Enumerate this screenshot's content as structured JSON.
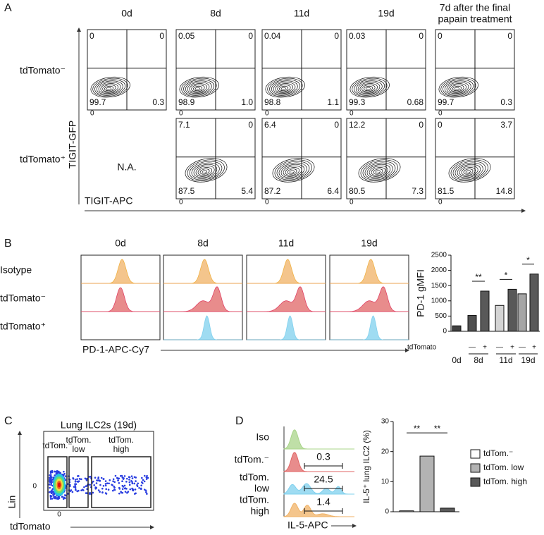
{
  "panel_a": {
    "label": "A",
    "columns": [
      [
        "0d"
      ],
      [
        "8d"
      ],
      [
        "11d"
      ],
      [
        "19d"
      ],
      [
        "7d after the final",
        "papain treatment"
      ]
    ],
    "rows": [
      "tdTomato⁻",
      "tdTomato⁺"
    ],
    "not_available": "N.A.",
    "y_axis_label": "TIGIT-GFP",
    "x_axis_label": "TIGIT-APC",
    "axis_zero": "0",
    "quadrants": [
      [
        [
          "0",
          "0",
          "99.7",
          "0.3"
        ],
        [
          "0.05",
          "0",
          "98.9",
          "1.0"
        ],
        [
          "0.04",
          "0",
          "98.8",
          "1.1"
        ],
        [
          "0.03",
          "0",
          "99.3",
          "0.68"
        ],
        [
          "0",
          "0",
          "99.7",
          "0.3"
        ]
      ],
      [
        null,
        [
          "7.1",
          "0",
          "87.5",
          "5.4"
        ],
        [
          "6.4",
          "0",
          "87.2",
          "6.4"
        ],
        [
          "12.2",
          "0",
          "80.5",
          "7.3"
        ],
        [
          "0",
          "3.7",
          "81.5",
          "14.8"
        ]
      ]
    ]
  },
  "panel_b": {
    "label": "B",
    "columns": [
      "0d",
      "8d",
      "11d",
      "19d"
    ],
    "rows": [
      "Isotype",
      "tdTomato⁻",
      "tdTomato⁺"
    ],
    "x_axis_label": "PD-1-APC-Cy7",
    "chart": {
      "type": "bar",
      "ylabel": "PD-1 gMFI",
      "ylim": [
        0,
        2500
      ],
      "yticks": [
        0,
        500,
        1000,
        1500,
        2000,
        2500
      ],
      "values": [
        180,
        520,
        1320,
        850,
        1380,
        1230,
        1880
      ],
      "colors": [
        "#404040",
        "#505050",
        "#595959",
        "#d4d4d4",
        "#595959",
        "#a6a6a6",
        "#595959"
      ],
      "xlabel": "tdTomato",
      "signs": [
        "—",
        "+",
        "—",
        "+",
        "—",
        "+"
      ],
      "groups": [
        "0d",
        "8d",
        "11d",
        "19d"
      ],
      "significance": [
        "**",
        "*",
        "*"
      ]
    }
  },
  "panel_c": {
    "label": "C",
    "title": "Lung ILC2s (19d)",
    "gates": [
      [
        "tdTom.⁻"
      ],
      [
        "tdTom.",
        "low"
      ],
      [
        "tdTom.",
        "high"
      ]
    ],
    "y_axis_label": "Lin",
    "x_axis_label": "tdTomato",
    "axis_zero": "0"
  },
  "panel_d": {
    "label": "D",
    "rows": [
      [
        "Iso"
      ],
      [
        "tdTom.⁻"
      ],
      [
        "tdTom.",
        "low"
      ],
      [
        "tdTom.",
        "high"
      ]
    ],
    "gate_values": [
      null,
      "0.3",
      "24.5",
      "1.4"
    ],
    "x_axis_label": "IL-5-APC",
    "chart": {
      "type": "bar",
      "ylabel": "IL-5⁺ lung ILC2 (%)",
      "ylim": [
        0,
        30
      ],
      "yticks": [
        0,
        10,
        20,
        30
      ],
      "values": [
        0.3,
        18.5,
        1.2
      ],
      "colors": [
        "#ffffff",
        "#b3b3b3",
        "#595959"
      ],
      "legend": [
        "tdTom.⁻",
        "tdTom. low",
        "tdTom. high"
      ],
      "significance": [
        "**",
        "**"
      ]
    }
  }
}
